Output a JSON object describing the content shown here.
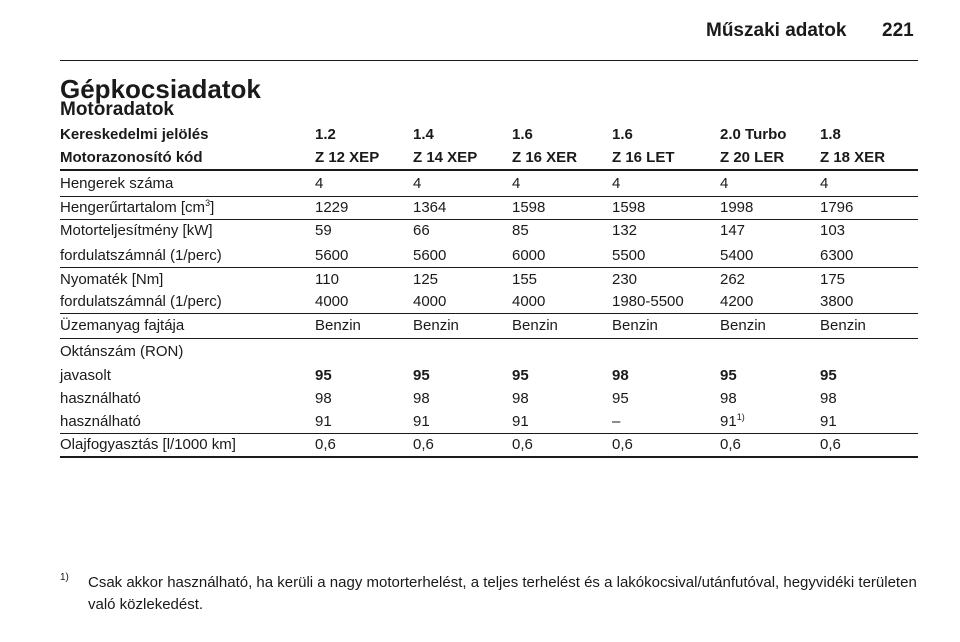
{
  "header": {
    "title": "Műszaki adatok",
    "page": "221"
  },
  "section_title": "Gépkocsiadatok",
  "subsection_title": "Motoradatok",
  "table": {
    "header_rows": [
      [
        "Kereskedelmi jelölés",
        "1.2",
        "1.4",
        "1.6",
        "1.6",
        "2.0 Turbo",
        "1.8"
      ],
      [
        "Motorazonosító kód",
        "Z 12 XEP",
        "Z 14 XEP",
        "Z 16 XER",
        "Z 16 LET",
        "Z 20 LER",
        "Z 18 XER"
      ]
    ],
    "rows": [
      [
        "Hengerek száma",
        "4",
        "4",
        "4",
        "4",
        "4",
        "4"
      ],
      [
        {
          "text": "Hengerűrtartalom [cm",
          "sup": "3",
          "after": "]"
        },
        "1229",
        "1364",
        "1598",
        "1598",
        "1998",
        "1796"
      ],
      [
        "Motorteljesítmény [kW]",
        "59",
        "66",
        "85",
        "132",
        "147",
        "103"
      ],
      [
        "fordulatszámnál (1/perc)",
        "5600",
        "5600",
        "6000",
        "5500",
        "5400",
        "6300"
      ],
      [
        "Nyomaték [Nm]",
        "110",
        "125",
        "155",
        "230",
        "262",
        "175"
      ],
      [
        "fordulatszámnál (1/perc)",
        "4000",
        "4000",
        "4000",
        "1980-5500",
        "4200",
        "3800"
      ],
      [
        "Üzemanyag fajtája",
        "Benzin",
        "Benzin",
        "Benzin",
        "Benzin",
        "Benzin",
        "Benzin"
      ],
      [
        "Oktánszám (RON)"
      ],
      [
        "javasolt",
        "95",
        "95",
        "95",
        "98",
        "95",
        "95"
      ],
      [
        "használható",
        "98",
        "98",
        "98",
        "95",
        "98",
        "98"
      ],
      [
        "használható",
        "91",
        "91",
        "91",
        "–",
        {
          "text": "91",
          "sup": "1)"
        },
        "91"
      ],
      [
        "Olajfogyasztás [l/1000 km]",
        "0,6",
        "0,6",
        "0,6",
        "0,6",
        "0,6",
        "0,6"
      ]
    ]
  },
  "footnote": {
    "marker": "1)",
    "text": "Csak akkor használható, ha kerüli a nagy motorterhelést, a teljes terhelést és a lakókocsival/utánfutóval, hegyvidéki területen való közlekedést."
  }
}
